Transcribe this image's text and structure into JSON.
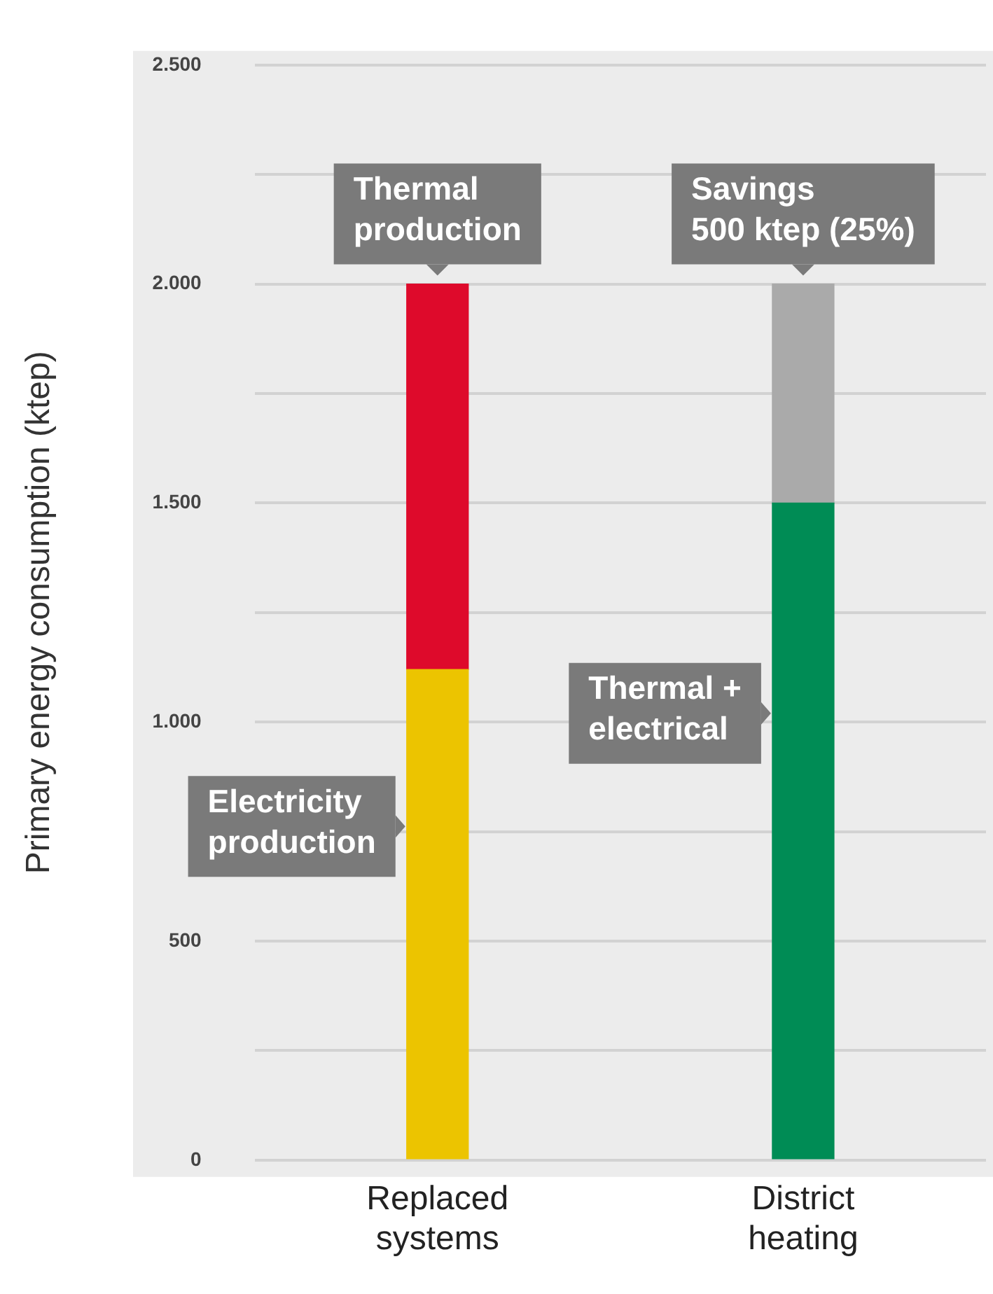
{
  "chart_data": {
    "type": "bar",
    "stacked": true,
    "ylabel": "Primary energy consumption (ktep)",
    "categories": [
      "Replaced systems",
      "District heating"
    ],
    "series": [
      {
        "name": "Electricity production",
        "color": "#ecc400",
        "values": [
          1120,
          null
        ]
      },
      {
        "name": "Thermal production",
        "color": "#de0a2b",
        "values": [
          880,
          null
        ]
      },
      {
        "name": "Thermal + electrical",
        "color": "#008c55",
        "values": [
          null,
          1500
        ]
      },
      {
        "color": "#aaaaaa",
        "values": [
          null,
          500
        ]
      }
    ],
    "ylim": [
      0,
      2500
    ],
    "yticks": [
      0,
      {
        "value": 250,
        "label": null
      },
      500,
      {
        "value": 750,
        "label": null
      },
      {
        "value": 1000,
        "label": "1.000"
      },
      {
        "value": 1250,
        "label": null
      },
      {
        "value": 1500,
        "label": "1.500"
      },
      {
        "value": 1750,
        "label": null
      },
      {
        "value": 2000,
        "label": "2.000"
      },
      {
        "value": 2250,
        "label": null
      },
      {
        "value": 2500,
        "label": "2.500"
      }
    ],
    "grid": "y",
    "legend": false,
    "annotations": [
      {
        "text": "Savings\n500 ktep (25%)",
        "x": "District heating",
        "y": 2000
      }
    ]
  }
}
